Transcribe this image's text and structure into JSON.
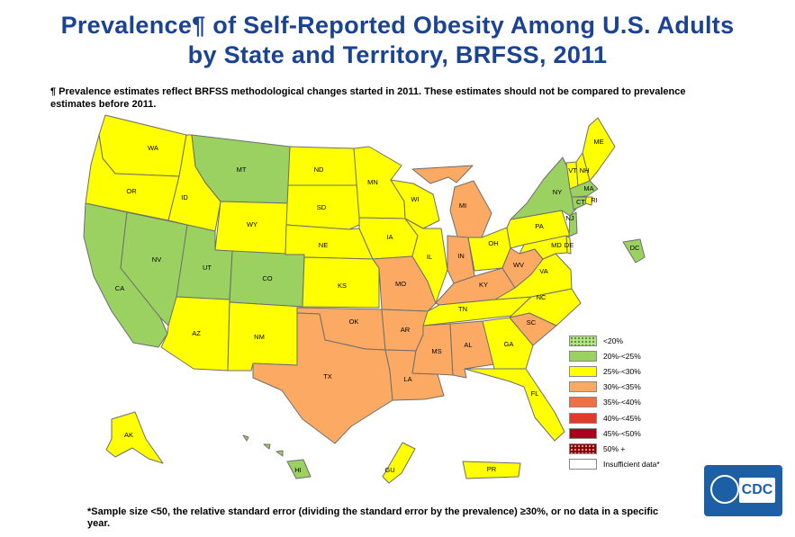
{
  "title": {
    "line1": "Prevalence¶ of Self-Reported Obesity Among U.S. Adults",
    "line2": "by State and Territory, BRFSS, 2011"
  },
  "footnote_top": "¶ Prevalence estimates reflect BRFSS methodological changes started in 2011. These estimates should not be compared to prevalence estimates before 2011.",
  "footnote_bottom": "*Sample size <50, the relative standard error (dividing the standard error by the prevalence) ≥30%, or no data in a specific year.",
  "logo_text": "CDC",
  "colors": {
    "lt20": "#b6e389",
    "20to25": "#9ad161",
    "25to30": "#ffff00",
    "30to35": "#fcaa63",
    "35to40": "#f16f45",
    "40to45": "#e03a2c",
    "45to50": "#a8001c",
    "50plus": "#8b0000",
    "insufficient": "#ffffff"
  },
  "legend": [
    {
      "label": "<20%",
      "class": "lt20"
    },
    {
      "label": "20%-<25%",
      "class": "20to25"
    },
    {
      "label": "25%-<30%",
      "class": "25to30"
    },
    {
      "label": "30%-<35%",
      "class": "30to35"
    },
    {
      "label": "35%-<40%",
      "class": "35to40"
    },
    {
      "label": "40%-<45%",
      "class": "40to45"
    },
    {
      "label": "45%-<50%",
      "class": "45to50"
    },
    {
      "label": "50% +",
      "class": "50plus"
    },
    {
      "label": "Insufficient data*",
      "class": "insufficient"
    }
  ],
  "states": {
    "WA": "25to30",
    "OR": "25to30",
    "CA": "20to25",
    "NV": "20to25",
    "ID": "25to30",
    "MT": "20to25",
    "WY": "25to30",
    "UT": "20to25",
    "CO": "20to25",
    "AZ": "25to30",
    "NM": "25to30",
    "ND": "25to30",
    "SD": "25to30",
    "NE": "25to30",
    "KS": "25to30",
    "OK": "30to35",
    "TX": "30to35",
    "MN": "25to30",
    "IA": "25to30",
    "MO": "30to35",
    "AR": "30to35",
    "LA": "30to35",
    "WI": "25to30",
    "IL": "25to30",
    "MI": "30to35",
    "IN": "30to35",
    "OH": "25to30",
    "KY": "30to35",
    "TN": "25to30",
    "MS": "30to35",
    "AL": "30to35",
    "GA": "25to30",
    "FL": "25to30",
    "SC": "30to35",
    "NC": "25to30",
    "VA": "25to30",
    "WV": "30to35",
    "PA": "25to30",
    "NY": "20to25",
    "VT": "25to30",
    "NH": "25to30",
    "ME": "25to30",
    "MA": "20to25",
    "RI": "25to30",
    "CT": "20to25",
    "NJ": "20to25",
    "DE": "25to30",
    "MD": "25to30",
    "DC": "20to25",
    "AK": "25to30",
    "HI": "20to25",
    "GU": "25to30",
    "PR": "25to30"
  },
  "state_labels": [
    "WA",
    "OR",
    "CA",
    "NV",
    "ID",
    "MT",
    "WY",
    "UT",
    "CO",
    "AZ",
    "NM",
    "ND",
    "SD",
    "NE",
    "KS",
    "OK",
    "TX",
    "MN",
    "IA",
    "MO",
    "AR",
    "LA",
    "WI",
    "IL",
    "MI",
    "IN",
    "OH",
    "KY",
    "TN",
    "MS",
    "AL",
    "GA",
    "FL",
    "SC",
    "NC",
    "VA",
    "WV",
    "PA",
    "NY",
    "VT",
    "NH",
    "ME",
    "MA",
    "RI",
    "CT",
    "NJ",
    "DE",
    "MD",
    "DC",
    "AK",
    "HI",
    "GU",
    "PR"
  ]
}
